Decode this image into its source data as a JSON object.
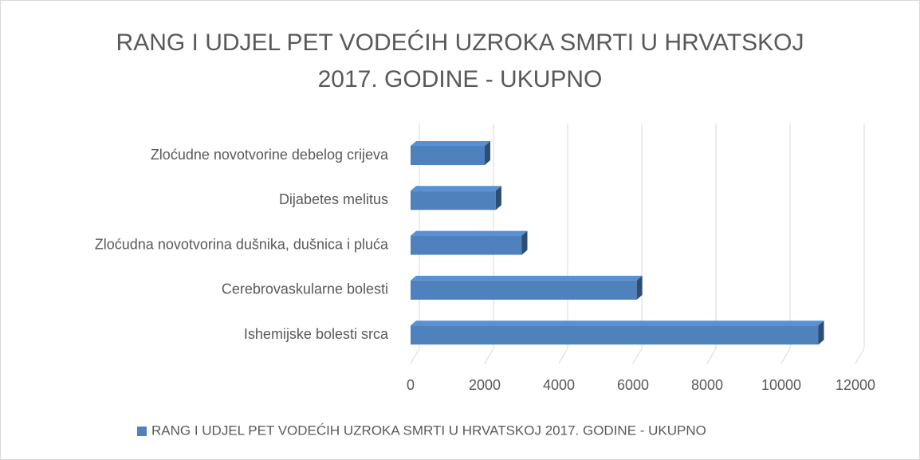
{
  "chart_data": {
    "type": "bar3d_horizontal",
    "title": [
      "RANG I UDJEL PET VODEĆIH UZROKA SMRTI U HRVATSKOJ",
      "2017. GODINE - UKUPNO"
    ],
    "categories": [
      "Zloćudne novotvorine debelog crijeva",
      "Dijabetes melitus",
      "Zloćudna novotvorina dušnika, dušnica i pluća",
      "Cerebrovaskularne bolesti",
      "Ishemijske bolesti srca"
    ],
    "series": [
      {
        "name": "RANG I UDJEL PET VODEĆIH UZROKA SMRTI U HRVATSKOJ 2017. GODINE - UKUPNO",
        "color": "#4f81bd",
        "values": [
          2000,
          2300,
          3000,
          6100,
          11000
        ]
      }
    ],
    "xlim": [
      0,
      12000
    ],
    "xticks": [
      0,
      2000,
      4000,
      6000,
      8000,
      10000,
      12000
    ],
    "grid": true,
    "legend": "bottom"
  }
}
